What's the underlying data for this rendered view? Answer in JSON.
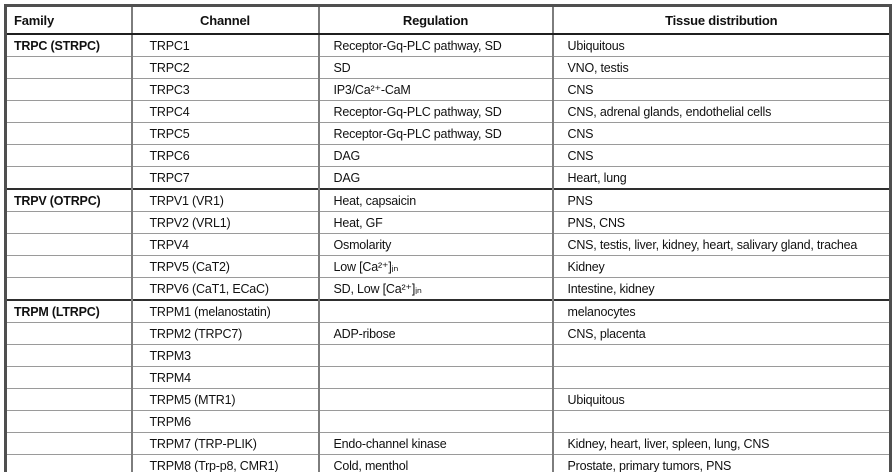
{
  "table": {
    "headers": [
      {
        "label": "Family"
      },
      {
        "label": "Channel"
      },
      {
        "label": "Regulation"
      },
      {
        "label": "Tissue distribution"
      }
    ],
    "rows": [
      {
        "family": "TRPC (STRPC)",
        "channel": "TRPC1",
        "regulation": "Receptor-Gq-PLC pathway, SD",
        "tissue": "Ubiquitous",
        "group_start": true
      },
      {
        "family": "",
        "channel": "TRPC2",
        "regulation": "SD",
        "tissue": "VNO, testis",
        "group_start": false
      },
      {
        "family": "",
        "channel": "TRPC3",
        "regulation": "IP3/Ca²⁺-CaM",
        "tissue": "CNS",
        "group_start": false
      },
      {
        "family": "",
        "channel": "TRPC4",
        "regulation": "Receptor-Gq-PLC pathway, SD",
        "tissue": "CNS, adrenal glands, endothelial cells",
        "group_start": false
      },
      {
        "family": "",
        "channel": "TRPC5",
        "regulation": "Receptor-Gq-PLC pathway, SD",
        "tissue": "CNS",
        "group_start": false
      },
      {
        "family": "",
        "channel": "TRPC6",
        "regulation": "DAG",
        "tissue": "CNS",
        "group_start": false
      },
      {
        "family": "",
        "channel": "TRPC7",
        "regulation": "DAG",
        "tissue": "Heart, lung",
        "group_start": false
      },
      {
        "family": "TRPV (OTRPC)",
        "channel": "TRPV1 (VR1)",
        "regulation": "Heat, capsaicin",
        "tissue": "PNS",
        "group_start": true
      },
      {
        "family": "",
        "channel": "TRPV2 (VRL1)",
        "regulation": "Heat, GF",
        "tissue": "PNS, CNS",
        "group_start": false
      },
      {
        "family": "",
        "channel": "TRPV4",
        "regulation": "Osmolarity",
        "tissue": "CNS, testis, liver, kidney, heart, salivary gland, trachea",
        "group_start": false
      },
      {
        "family": "",
        "channel": "TRPV5 (CaT2)",
        "regulation": "Low [Ca²⁺]ᵢₙ",
        "tissue": "Kidney",
        "group_start": false
      },
      {
        "family": "",
        "channel": "TRPV6 (CaT1, ECaC)",
        "regulation": "SD, Low [Ca²⁺]ᵢₙ",
        "tissue": "Intestine, kidney",
        "group_start": false
      },
      {
        "family": "TRPM (LTRPC)",
        "channel": "TRPM1 (melanostatin)",
        "regulation": "",
        "tissue": "melanocytes",
        "group_start": true
      },
      {
        "family": "",
        "channel": "TRPM2 (TRPC7)",
        "regulation": "ADP-ribose",
        "tissue": "CNS, placenta",
        "group_start": false
      },
      {
        "family": "",
        "channel": "TRPM3",
        "regulation": "",
        "tissue": "",
        "group_start": false
      },
      {
        "family": "",
        "channel": "TRPM4",
        "regulation": "",
        "tissue": "",
        "group_start": false
      },
      {
        "family": "",
        "channel": "TRPM5 (MTR1)",
        "regulation": "",
        "tissue": "Ubiquitous",
        "group_start": false
      },
      {
        "family": "",
        "channel": "TRPM6",
        "regulation": "",
        "tissue": "",
        "group_start": false
      },
      {
        "family": "",
        "channel": "TRPM7 (TRP-PLIK)",
        "regulation": "Endo-channel kinase",
        "tissue": "Kidney, heart, liver, spleen, lung, CNS",
        "group_start": false
      },
      {
        "family": "",
        "channel": "TRPM8 (Trp-p8, CMR1)",
        "regulation": "Cold, menthol",
        "tissue": "Prostate, primary tumors, PNS",
        "group_start": false
      }
    ]
  }
}
